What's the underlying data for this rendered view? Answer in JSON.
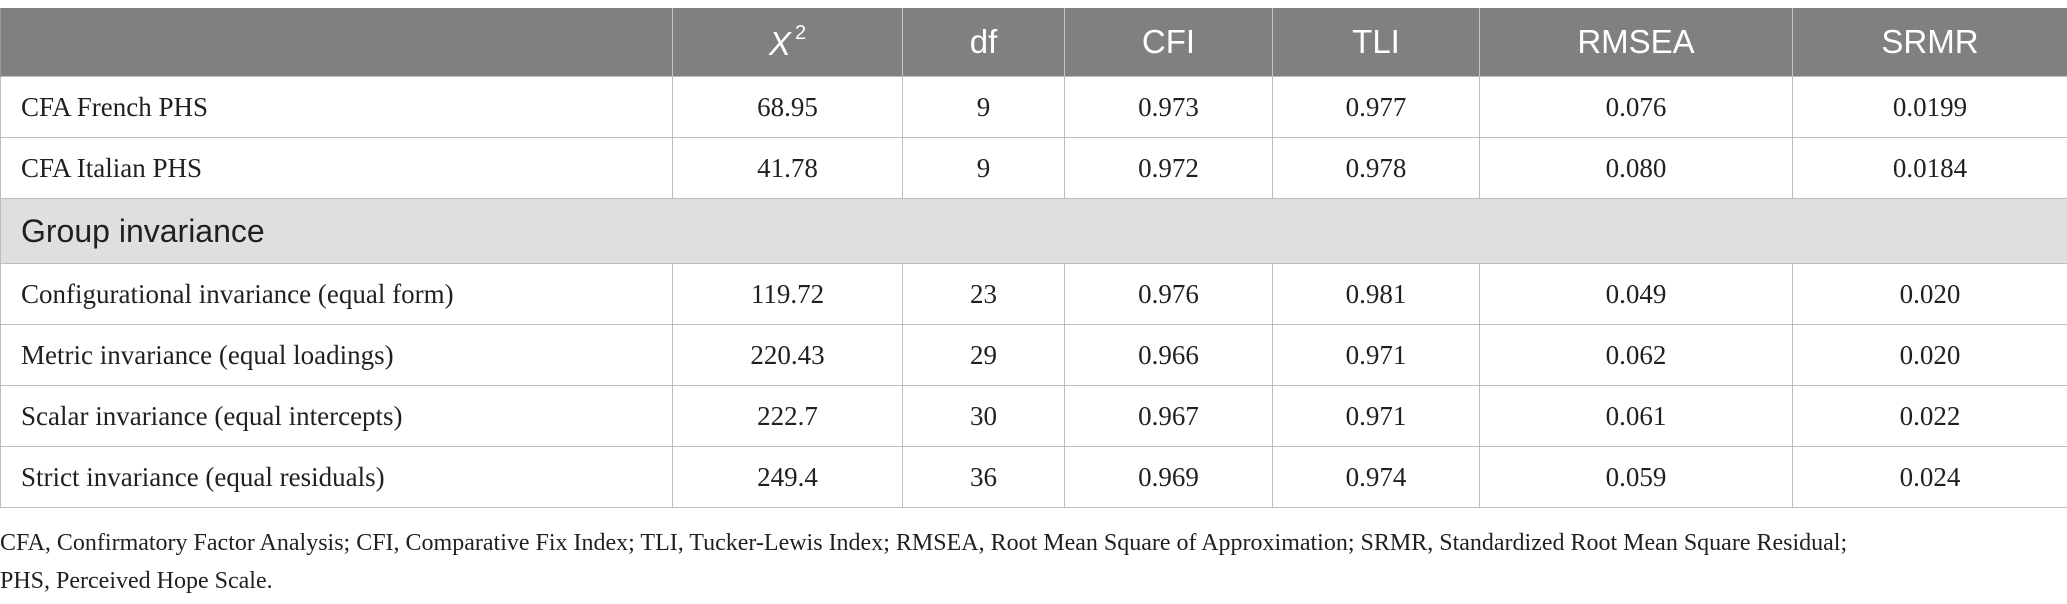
{
  "table": {
    "headers": [
      "",
      "X",
      "df",
      "CFI",
      "TLI",
      "RMSEA",
      "SRMR"
    ],
    "chi_superscript": "2",
    "rows_top": [
      {
        "label": "CFA French PHS",
        "values": [
          "68.95",
          "9",
          "0.973",
          "0.977",
          "0.076",
          "0.0199"
        ]
      },
      {
        "label": "CFA Italian PHS",
        "values": [
          "41.78",
          "9",
          "0.972",
          "0.978",
          "0.080",
          "0.0184"
        ]
      }
    ],
    "section_label": "Group invariance",
    "rows_bottom": [
      {
        "label": "Configurational invariance (equal form)",
        "values": [
          "119.72",
          "23",
          "0.976",
          "0.981",
          "0.049",
          "0.020"
        ]
      },
      {
        "label": "Metric invariance (equal loadings)",
        "values": [
          "220.43",
          "29",
          "0.966",
          "0.971",
          "0.062",
          "0.020"
        ]
      },
      {
        "label": "Scalar invariance (equal intercepts)",
        "values": [
          "222.7",
          "30",
          "0.967",
          "0.971",
          "0.061",
          "0.022"
        ]
      },
      {
        "label": "Strict invariance (equal residuals)",
        "values": [
          "249.4",
          "36",
          "0.969",
          "0.974",
          "0.059",
          "0.024"
        ]
      }
    ]
  },
  "footnote": {
    "line1": "CFA, Confirmatory Factor Analysis; CFI, Comparative Fix Index; TLI, Tucker-Lewis Index; RMSEA, Root Mean Square of Approximation; SRMR, Standardized Root Mean Square Residual;",
    "line2": "PHS, Perceived Hope Scale."
  },
  "colors": {
    "header_bg": "#808080",
    "section_bg": "#e0dfe0",
    "border": "#bdbdbd"
  }
}
